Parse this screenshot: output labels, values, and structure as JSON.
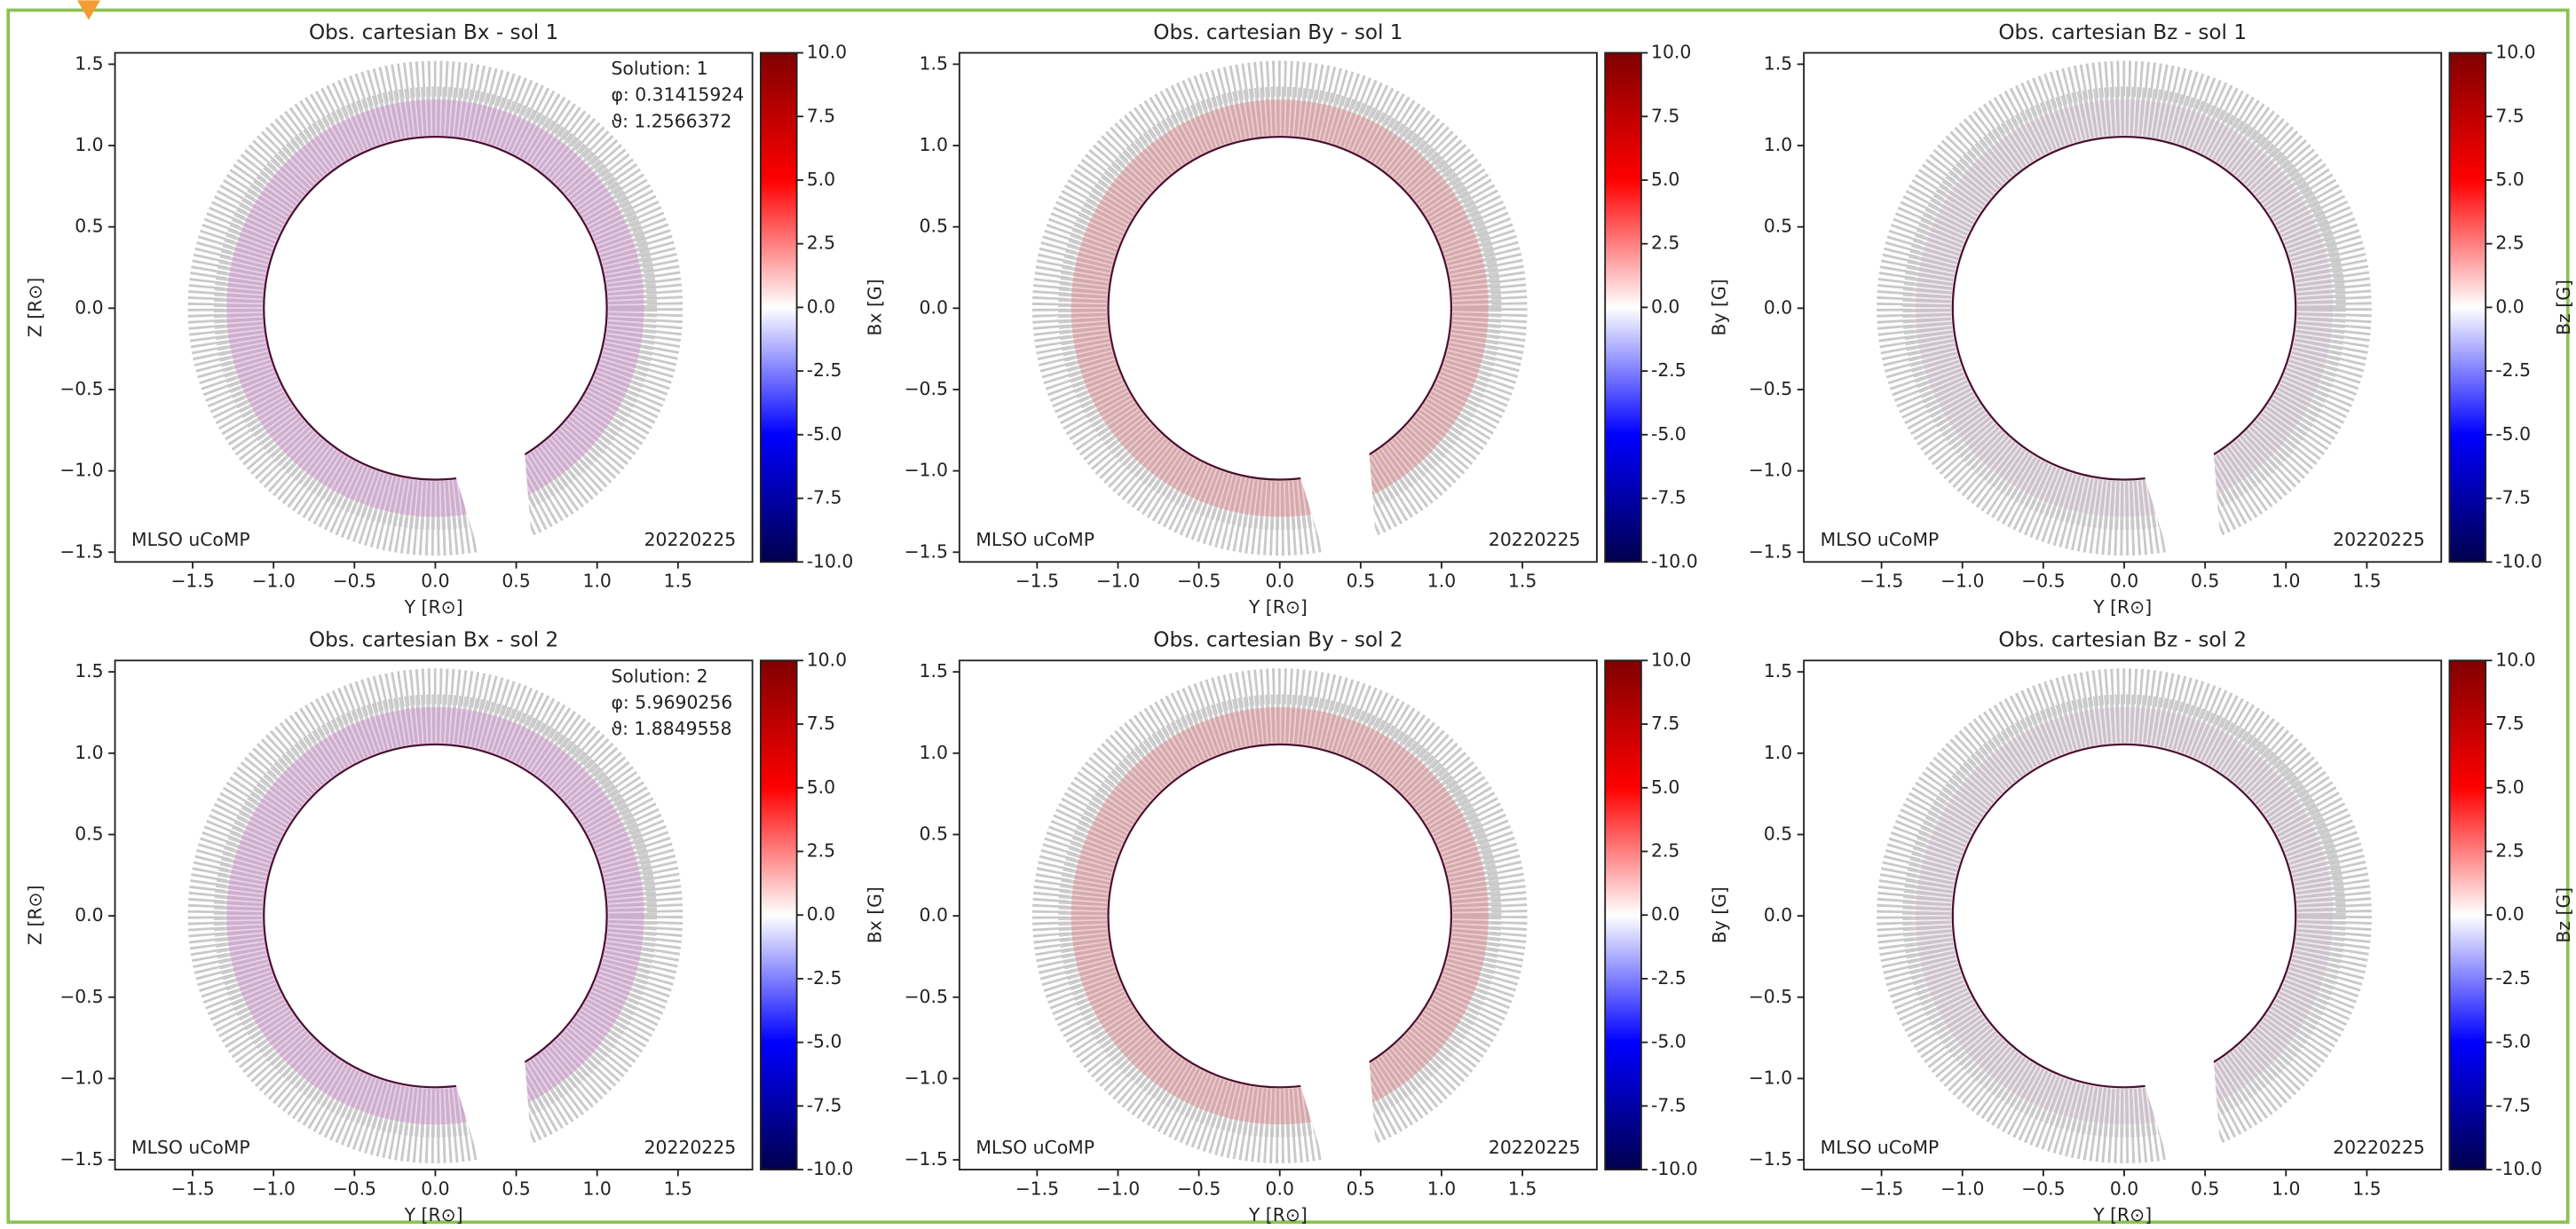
{
  "chart_data": [
    {
      "type": "image",
      "title": "Obs. cartesian Bx - sol 1",
      "xlabel": "Y [R⊙]",
      "ylabel": "Z [R⊙]",
      "xlim": [
        -1.98,
        1.96
      ],
      "ylim": [
        -1.56,
        1.57
      ],
      "xticks": [
        {
          "value": -1.5,
          "label": "−1.5"
        },
        {
          "value": -1,
          "label": "−1.0"
        },
        {
          "value": -0.5,
          "label": "−0.5"
        },
        {
          "value": 0,
          "label": "0.0"
        },
        0.5,
        {
          "value": 1,
          "label": "1.0"
        },
        1.5
      ],
      "yticks": [
        {
          "value": -1.5,
          "label": "−1.5"
        },
        {
          "value": -1,
          "label": "−1.0"
        },
        {
          "value": -0.5,
          "label": "−0.5"
        },
        {
          "value": 0,
          "label": "0.0"
        },
        0.5,
        {
          "value": 1,
          "label": "1.0"
        },
        1.5
      ],
      "colorbar": {
        "label": "Bx [G]",
        "lim": [
          -10,
          10
        ],
        "colormap": "seismic",
        "ticks": [
          {
            "value": -10,
            "label": "-10.0"
          },
          -7.5,
          {
            "value": -5,
            "label": "-5.0"
          },
          -2.5,
          {
            "value": 0,
            "label": "0.0"
          },
          2.5,
          {
            "value": 5,
            "label": "5.0"
          },
          7.5,
          {
            "value": 10,
            "label": "10.0"
          }
        ]
      },
      "annotations": [
        "MLSO uCoMP",
        "20220225"
      ],
      "solution": [
        "Solution: 1",
        "φ: 0.31415924",
        "ϑ: 1.2566372"
      ]
    },
    {
      "type": "image",
      "title": "Obs. cartesian By - sol 1",
      "xlabel": "Y [R⊙]",
      "xlim": [
        -1.98,
        1.96
      ],
      "ylim": [
        -1.56,
        1.57
      ],
      "xticks": [
        {
          "value": -1.5,
          "label": "−1.5"
        },
        {
          "value": -1,
          "label": "−1.0"
        },
        {
          "value": -0.5,
          "label": "−0.5"
        },
        {
          "value": 0,
          "label": "0.0"
        },
        0.5,
        {
          "value": 1,
          "label": "1.0"
        },
        1.5
      ],
      "yticks": [
        {
          "value": -1.5,
          "label": "−1.5"
        },
        {
          "value": -1,
          "label": "−1.0"
        },
        {
          "value": -0.5,
          "label": "−0.5"
        },
        {
          "value": 0,
          "label": "0.0"
        },
        0.5,
        {
          "value": 1,
          "label": "1.0"
        },
        1.5
      ],
      "colorbar": {
        "label": "By [G]",
        "lim": [
          -10,
          10
        ],
        "colormap": "seismic",
        "ticks": [
          {
            "value": -10,
            "label": "-10.0"
          },
          -7.5,
          {
            "value": -5,
            "label": "-5.0"
          },
          -2.5,
          {
            "value": 0,
            "label": "0.0"
          },
          2.5,
          {
            "value": 5,
            "label": "5.0"
          },
          7.5,
          {
            "value": 10,
            "label": "10.0"
          }
        ]
      },
      "annotations": [
        "MLSO uCoMP",
        "20220225"
      ]
    },
    {
      "type": "image",
      "title": "Obs. cartesian Bz - sol 1",
      "xlabel": "Y [R⊙]",
      "xlim": [
        -1.98,
        1.96
      ],
      "ylim": [
        -1.56,
        1.57
      ],
      "xticks": [
        {
          "value": -1.5,
          "label": "−1.5"
        },
        {
          "value": -1,
          "label": "−1.0"
        },
        {
          "value": -0.5,
          "label": "−0.5"
        },
        {
          "value": 0,
          "label": "0.0"
        },
        0.5,
        {
          "value": 1,
          "label": "1.0"
        },
        1.5
      ],
      "yticks": [
        {
          "value": -1.5,
          "label": "−1.5"
        },
        {
          "value": -1,
          "label": "−1.0"
        },
        {
          "value": -0.5,
          "label": "−0.5"
        },
        {
          "value": 0,
          "label": "0.0"
        },
        0.5,
        {
          "value": 1,
          "label": "1.0"
        },
        1.5
      ],
      "colorbar": {
        "label": "Bz [G]",
        "lim": [
          -10,
          10
        ],
        "colormap": "seismic",
        "ticks": [
          {
            "value": -10,
            "label": "-10.0"
          },
          -7.5,
          {
            "value": -5,
            "label": "-5.0"
          },
          -2.5,
          {
            "value": 0,
            "label": "0.0"
          },
          2.5,
          {
            "value": 5,
            "label": "5.0"
          },
          7.5,
          {
            "value": 10,
            "label": "10.0"
          }
        ]
      },
      "annotations": [
        "MLSO uCoMP",
        "20220225"
      ]
    },
    {
      "type": "image",
      "title": "Obs. cartesian Bx - sol 2",
      "xlabel": "Y [R⊙]",
      "ylabel": "Z [R⊙]",
      "xlim": [
        -1.98,
        1.96
      ],
      "ylim": [
        -1.56,
        1.57
      ],
      "xticks": [
        {
          "value": -1.5,
          "label": "−1.5"
        },
        {
          "value": -1,
          "label": "−1.0"
        },
        {
          "value": -0.5,
          "label": "−0.5"
        },
        {
          "value": 0,
          "label": "0.0"
        },
        0.5,
        {
          "value": 1,
          "label": "1.0"
        },
        1.5
      ],
      "yticks": [
        {
          "value": -1.5,
          "label": "−1.5"
        },
        {
          "value": -1,
          "label": "−1.0"
        },
        {
          "value": -0.5,
          "label": "−0.5"
        },
        {
          "value": 0,
          "label": "0.0"
        },
        0.5,
        {
          "value": 1,
          "label": "1.0"
        },
        1.5
      ],
      "colorbar": {
        "label": "Bx [G]",
        "lim": [
          -10,
          10
        ],
        "colormap": "seismic",
        "ticks": [
          {
            "value": -10,
            "label": "-10.0"
          },
          -7.5,
          {
            "value": -5,
            "label": "-5.0"
          },
          -2.5,
          {
            "value": 0,
            "label": "0.0"
          },
          2.5,
          {
            "value": 5,
            "label": "5.0"
          },
          7.5,
          {
            "value": 10,
            "label": "10.0"
          }
        ]
      },
      "annotations": [
        "MLSO uCoMP",
        "20220225"
      ],
      "solution": [
        "Solution: 2",
        "φ: 5.9690256",
        "ϑ: 1.8849558"
      ]
    },
    {
      "type": "image",
      "title": "Obs. cartesian By - sol 2",
      "xlabel": "Y [R⊙]",
      "xlim": [
        -1.98,
        1.96
      ],
      "ylim": [
        -1.56,
        1.57
      ],
      "xticks": [
        {
          "value": -1.5,
          "label": "−1.5"
        },
        {
          "value": -1,
          "label": "−1.0"
        },
        {
          "value": -0.5,
          "label": "−0.5"
        },
        {
          "value": 0,
          "label": "0.0"
        },
        0.5,
        {
          "value": 1,
          "label": "1.0"
        },
        1.5
      ],
      "yticks": [
        {
          "value": -1.5,
          "label": "−1.5"
        },
        {
          "value": -1,
          "label": "−1.0"
        },
        {
          "value": -0.5,
          "label": "−0.5"
        },
        {
          "value": 0,
          "label": "0.0"
        },
        0.5,
        {
          "value": 1,
          "label": "1.0"
        },
        1.5
      ],
      "colorbar": {
        "label": "By [G]",
        "lim": [
          -10,
          10
        ],
        "colormap": "seismic",
        "ticks": [
          {
            "value": -10,
            "label": "-10.0"
          },
          -7.5,
          {
            "value": -5,
            "label": "-5.0"
          },
          -2.5,
          {
            "value": 0,
            "label": "0.0"
          },
          2.5,
          {
            "value": 5,
            "label": "5.0"
          },
          7.5,
          {
            "value": 10,
            "label": "10.0"
          }
        ]
      },
      "annotations": [
        "MLSO uCoMP",
        "20220225"
      ]
    },
    {
      "type": "image",
      "title": "Obs. cartesian Bz - sol 2",
      "xlabel": "Y [R⊙]",
      "xlim": [
        -1.98,
        1.96
      ],
      "ylim": [
        -1.56,
        1.57
      ],
      "xticks": [
        {
          "value": -1.5,
          "label": "−1.5"
        },
        {
          "value": -1,
          "label": "−1.0"
        },
        {
          "value": -0.5,
          "label": "−0.5"
        },
        {
          "value": 0,
          "label": "0.0"
        },
        0.5,
        {
          "value": 1,
          "label": "1.0"
        },
        1.5
      ],
      "yticks": [
        {
          "value": -1.5,
          "label": "−1.5"
        },
        {
          "value": -1,
          "label": "−1.0"
        },
        {
          "value": -0.5,
          "label": "−0.5"
        },
        {
          "value": 0,
          "label": "0.0"
        },
        0.5,
        {
          "value": 1,
          "label": "1.0"
        },
        1.5
      ],
      "colorbar": {
        "label": "Bz [G]",
        "lim": [
          -10,
          10
        ],
        "colormap": "seismic",
        "ticks": [
          {
            "value": -10,
            "label": "-10.0"
          },
          -7.5,
          {
            "value": -5,
            "label": "-5.0"
          },
          -2.5,
          {
            "value": 0,
            "label": "0.0"
          },
          2.5,
          {
            "value": 5,
            "label": "5.0"
          },
          7.5,
          {
            "value": 10,
            "label": "10.0"
          }
        ]
      },
      "annotations": [
        "MLSO uCoMP",
        "20220225"
      ]
    }
  ]
}
